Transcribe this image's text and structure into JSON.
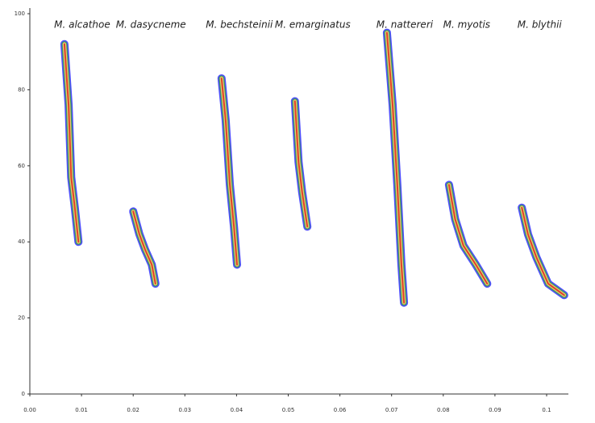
{
  "chart_data": {
    "type": "spectrogram",
    "xlim": [
      0,
      0.104
    ],
    "ylim": [
      0,
      100
    ],
    "xticks": [
      {
        "value": 0,
        "label": "0.00"
      },
      0.01,
      0.02,
      0.03,
      0.04,
      0.05,
      0.06,
      0.07,
      0.08,
      0.09,
      0.1
    ],
    "yticks": [
      0,
      20,
      40,
      60,
      80,
      100
    ],
    "colors": [
      "#3b3bff",
      "#3f9e4a",
      "#f2d27a",
      "#e2321f"
    ],
    "series": [
      {
        "name": "M. alcathoe",
        "x": [
          0.0067,
          0.0075,
          0.008,
          0.0087,
          0.0094
        ],
        "y": [
          92,
          76,
          57,
          49,
          40
        ]
      },
      {
        "name": "M. dasycneme",
        "x": [
          0.02,
          0.0212,
          0.0223,
          0.0236,
          0.0243
        ],
        "y": [
          48,
          42,
          38,
          34,
          29
        ]
      },
      {
        "name": "M. bechsteinii",
        "x": [
          0.0371,
          0.0379,
          0.0387,
          0.0395,
          0.0401
        ],
        "y": [
          83,
          72,
          55,
          44,
          34
        ]
      },
      {
        "name": "M. emarginatus",
        "x": [
          0.0513,
          0.052,
          0.0527,
          0.0537
        ],
        "y": [
          77,
          61,
          53,
          44
        ]
      },
      {
        "name": "M. nattereri",
        "x": [
          0.0691,
          0.0702,
          0.0711,
          0.0719,
          0.0724
        ],
        "y": [
          95,
          76,
          55,
          34,
          24
        ]
      },
      {
        "name": "M. myotis",
        "x": [
          0.0811,
          0.0823,
          0.0839,
          0.0863,
          0.0885
        ],
        "y": [
          55,
          46,
          39,
          34,
          29
        ]
      },
      {
        "name": "M. blythii",
        "x": [
          0.0952,
          0.0964,
          0.098,
          0.1003,
          0.1034
        ],
        "y": [
          49,
          42,
          36,
          29,
          26
        ]
      }
    ]
  }
}
